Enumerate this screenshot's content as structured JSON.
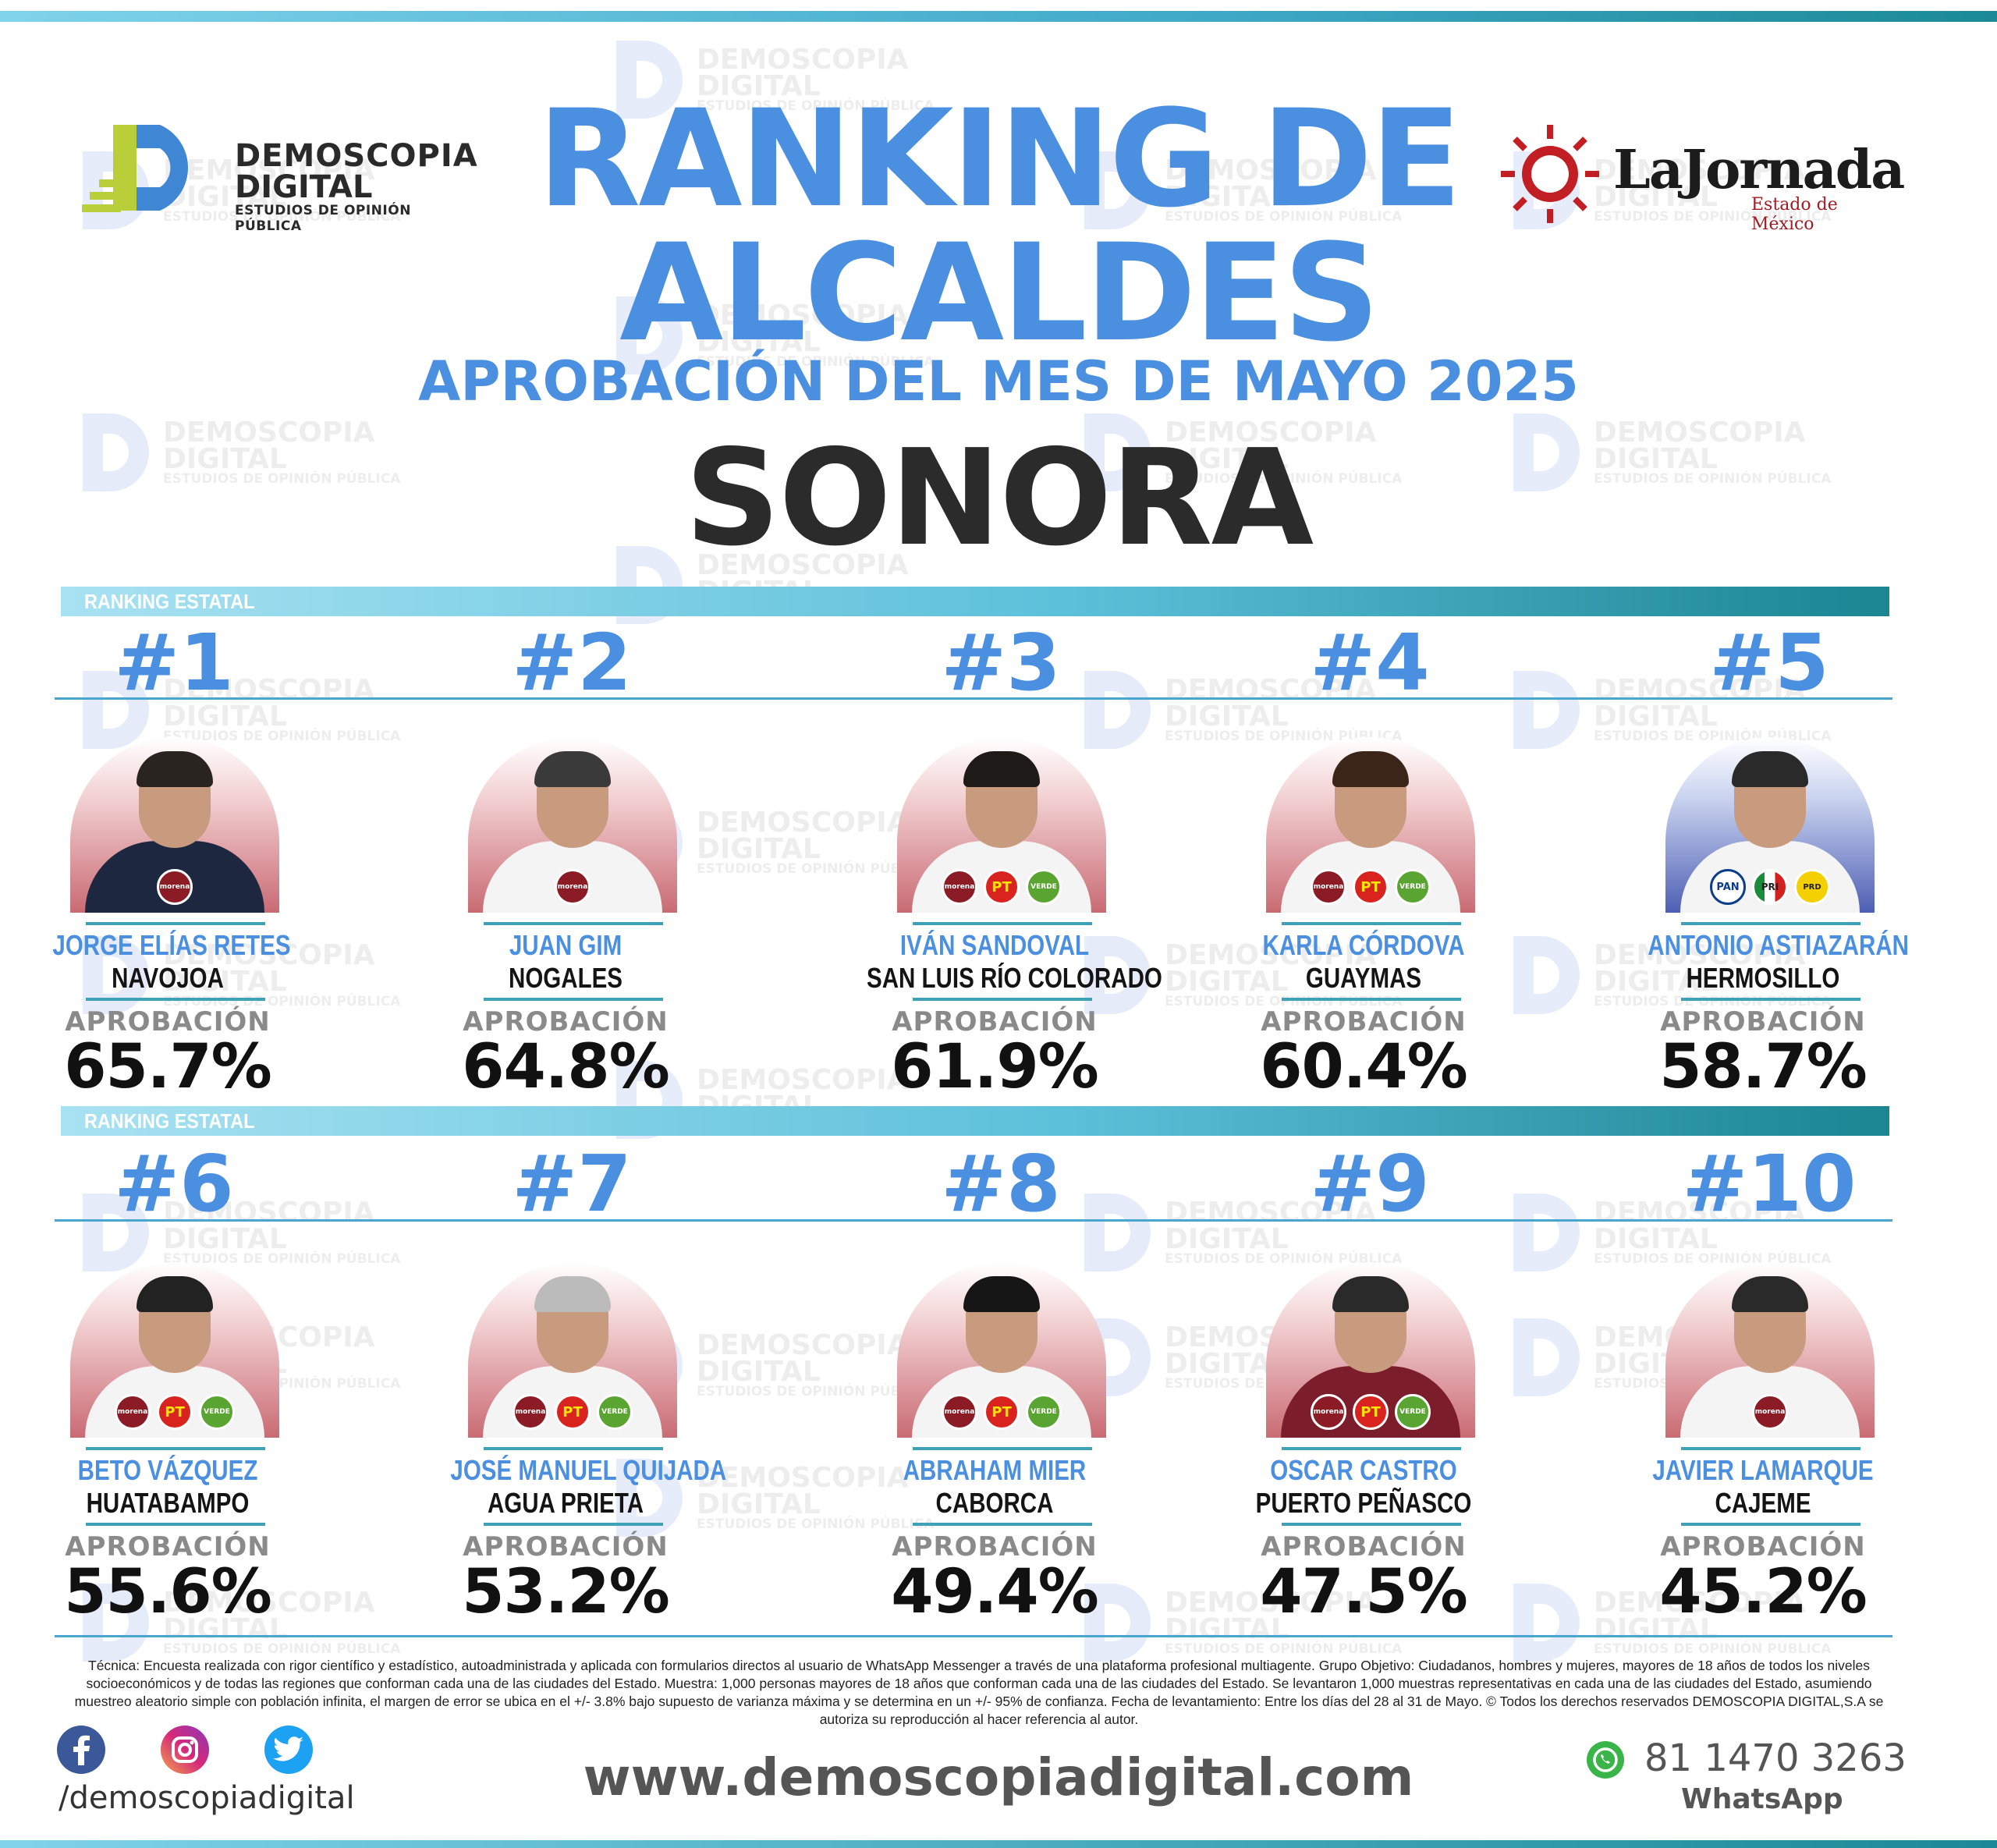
{
  "brand": {
    "left_logo": {
      "line1": "DEMOSCOPIA",
      "line2": "DIGITAL",
      "line3": "ESTUDIOS DE OPINIÓN PÚBLICA"
    },
    "right_logo": {
      "name": "LaJornada",
      "sub": "Estado de México"
    },
    "watermark": {
      "line1": "DEMOSCOPIA",
      "line2": "DIGITAL",
      "line3": "ESTUDIOS DE OPINIÓN PÚBLICA"
    }
  },
  "header": {
    "title_line1": "RANKING DE",
    "title_line2": "ALCALDES",
    "subtitle": "APROBACIÓN DEL MES DE MAYO 2025",
    "state": "SONORA"
  },
  "section_label": "RANKING ESTATAL",
  "approval_label": "APROBACIÓN",
  "candidates": [
    {
      "rank": "#1",
      "name": "JORGE ELÍAS RETES",
      "city": "NAVOJOA",
      "approval": "65.7%",
      "parties": [
        "morena"
      ]
    },
    {
      "rank": "#2",
      "name": "JUAN GIM",
      "city": "NOGALES",
      "approval": "64.8%",
      "parties": [
        "morena"
      ]
    },
    {
      "rank": "#3",
      "name": "IVÁN SANDOVAL",
      "city": "SAN LUIS RÍO COLORADO",
      "approval": "61.9%",
      "parties": [
        "morena",
        "PT",
        "VERDE"
      ]
    },
    {
      "rank": "#4",
      "name": "KARLA CÓRDOVA",
      "city": "GUAYMAS",
      "approval": "60.4%",
      "parties": [
        "morena",
        "PT",
        "VERDE"
      ]
    },
    {
      "rank": "#5",
      "name": "ANTONIO ASTIAZARÁN",
      "city": "HERMOSILLO",
      "approval": "58.7%",
      "parties": [
        "PAN",
        "PRI",
        "PRD"
      ]
    },
    {
      "rank": "#6",
      "name": "BETO VÁZQUEZ",
      "city": "HUATABAMPO",
      "approval": "55.6%",
      "parties": [
        "morena",
        "PT",
        "VERDE"
      ]
    },
    {
      "rank": "#7",
      "name": "JOSÉ MANUEL QUIJADA",
      "city": "AGUA PRIETA",
      "approval": "53.2%",
      "parties": [
        "morena",
        "PT",
        "VERDE"
      ]
    },
    {
      "rank": "#8",
      "name": "ABRAHAM MIER",
      "city": "CABORCA",
      "approval": "49.4%",
      "parties": [
        "morena",
        "PT",
        "VERDE"
      ]
    },
    {
      "rank": "#9",
      "name": "OSCAR CASTRO",
      "city": "PUERTO PEÑASCO",
      "approval": "47.5%",
      "parties": [
        "morena",
        "PT",
        "VERDE"
      ]
    },
    {
      "rank": "#10",
      "name": "JAVIER LAMARQUE",
      "city": "CAJEME",
      "approval": "45.2%",
      "parties": [
        "morena"
      ]
    }
  ],
  "footer": {
    "disclaimer": "Técnica: Encuesta realizada con rigor científico y estadístico, autoadministrada y aplicada con formularios directos al usuario de WhatsApp Messenger a través de una plataforma profesional multiagente. Grupo Objetivo: Ciudadanos, hombres y mujeres, mayores de 18 años de todos los niveles socioeconómicos y de todas las regiones que conforman cada una de las ciudades del Estado. Muestra: 1,000 personas mayores de 18 años que conforman cada una de las ciudades del Estado. Se levantaron 1,000 muestras representativas en cada una de las ciudades del Estado, asumiendo muestreo aleatorio simple con población infinita, el margen de error se ubica en el +/- 3.8% bajo supuesto de varianza máxima y se determina en un +/- 95% de confianza. Fecha de levantamiento: Entre los días del 28 al 31 de Mayo. © Todos los derechos reservados DEMOSCOPIA DIGITAL,S.A se autoriza su reproducción al hacer referencia al autor.",
    "social_handle": "/demoscopiadigital",
    "social_icons": [
      "facebook-icon",
      "instagram-icon",
      "twitter-icon"
    ],
    "website": "www.demoscopiadigital.com",
    "phone": "81 1470 3263",
    "phone_label": "WhatsApp"
  },
  "colors": {
    "accent_blue": "#4a8fe0",
    "teal": "#1b8592",
    "dark_text": "#2b2b2b"
  }
}
